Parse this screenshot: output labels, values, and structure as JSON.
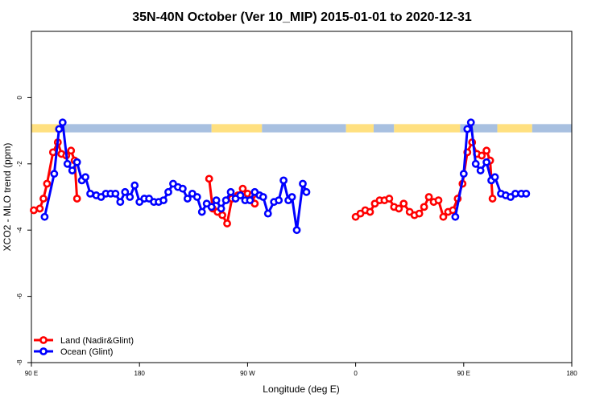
{
  "chart_data": {
    "type": "line",
    "title": "35N-40N October (Ver 10_MIP)   2015-01-01 to 2020-12-31",
    "xlabel": "Longitude (deg E)",
    "ylabel": "XCO2 - MLO trend (ppm)",
    "xlim": [
      90,
      540
    ],
    "ylim": [
      -8,
      2
    ],
    "x_ticks": [
      {
        "value": 90,
        "label": "90 E"
      },
      {
        "value": 180,
        "label": "180"
      },
      {
        "value": 270,
        "label": "90 W"
      },
      {
        "value": 360,
        "label": "0"
      },
      {
        "value": 450,
        "label": "90 E"
      },
      {
        "value": 540,
        "label": "180"
      }
    ],
    "y_ticks": [
      {
        "value": 0,
        "label": "0"
      },
      {
        "value": -2,
        "label": "-2"
      },
      {
        "value": -4,
        "label": "-4"
      },
      {
        "value": -6,
        "label": "-6"
      },
      {
        "value": -8,
        "label": "-8"
      }
    ],
    "grid": false,
    "legend_position": "bottom-left",
    "land_sea_bar": {
      "y_range": [
        -1.05,
        -0.8
      ],
      "land_color": "#ffe080",
      "sea_color": "#a8c0e0",
      "segments": [
        {
          "x0": 90,
          "x1": 117,
          "type": "land"
        },
        {
          "x0": 117,
          "x1": 240,
          "type": "sea"
        },
        {
          "x0": 240,
          "x1": 282,
          "type": "land"
        },
        {
          "x0": 282,
          "x1": 352,
          "type": "sea"
        },
        {
          "x0": 352,
          "x1": 375,
          "type": "land"
        },
        {
          "x0": 375,
          "x1": 392,
          "type": "sea"
        },
        {
          "x0": 392,
          "x1": 447,
          "type": "land"
        },
        {
          "x0": 447,
          "x1": 478,
          "type": "sea"
        },
        {
          "x0": 478,
          "x1": 507,
          "type": "land"
        },
        {
          "x0": 507,
          "x1": 540,
          "type": "sea"
        }
      ]
    },
    "series": [
      {
        "name": "Land (Nadir&Glint)",
        "color": "#ff0000",
        "segments": [
          [
            [
              92,
              -3.4
            ],
            [
              97,
              -3.35
            ],
            [
              100,
              -3.05
            ],
            [
              103,
              -2.6
            ],
            [
              108,
              -1.65
            ],
            [
              112,
              -1.35
            ],
            [
              115,
              -1.7
            ],
            [
              119,
              -1.75
            ],
            [
              123,
              -1.6
            ],
            [
              126,
              -1.9
            ],
            [
              128,
              -3.05
            ]
          ],
          [
            [
              238,
              -2.45
            ],
            [
              241,
              -3.35
            ],
            [
              245,
              -3.45
            ],
            [
              249,
              -3.55
            ],
            [
              253,
              -3.8
            ],
            [
              257,
              -3.05
            ],
            [
              262,
              -2.95
            ],
            [
              266,
              -2.75
            ],
            [
              270,
              -2.9
            ],
            [
              274,
              -2.95
            ],
            [
              276,
              -3.2
            ]
          ],
          [
            [
              360,
              -3.6
            ],
            [
              364,
              -3.5
            ],
            [
              368,
              -3.4
            ],
            [
              372,
              -3.45
            ],
            [
              376,
              -3.2
            ],
            [
              380,
              -3.1
            ],
            [
              384,
              -3.1
            ],
            [
              388,
              -3.05
            ],
            [
              392,
              -3.3
            ],
            [
              396,
              -3.35
            ],
            [
              400,
              -3.2
            ],
            [
              405,
              -3.45
            ],
            [
              409,
              -3.55
            ],
            [
              413,
              -3.5
            ],
            [
              417,
              -3.3
            ],
            [
              421,
              -3.0
            ],
            [
              425,
              -3.15
            ],
            [
              429,
              -3.1
            ],
            [
              433,
              -3.6
            ],
            [
              437,
              -3.45
            ],
            [
              441,
              -3.4
            ],
            [
              445,
              -3.05
            ],
            [
              449,
              -2.6
            ],
            [
              453,
              -1.65
            ],
            [
              457,
              -1.35
            ],
            [
              461,
              -1.7
            ],
            [
              465,
              -1.75
            ],
            [
              469,
              -1.6
            ],
            [
              472,
              -1.9
            ],
            [
              474,
              -3.05
            ]
          ]
        ]
      },
      {
        "name": "Ocean (Glint)",
        "color": "#0000ff",
        "segments": [
          [
            [
              101,
              -3.6
            ],
            [
              109,
              -2.3
            ],
            [
              113,
              -0.95
            ],
            [
              116,
              -0.75
            ],
            [
              120,
              -2.0
            ],
            [
              124,
              -2.2
            ],
            [
              128,
              -1.95
            ],
            [
              132,
              -2.5
            ],
            [
              135,
              -2.4
            ],
            [
              139,
              -2.9
            ],
            [
              144,
              -2.95
            ],
            [
              148,
              -3.0
            ],
            [
              152,
              -2.9
            ],
            [
              156,
              -2.9
            ],
            [
              160,
              -2.9
            ],
            [
              164,
              -3.15
            ],
            [
              168,
              -2.85
            ],
            [
              172,
              -3.0
            ],
            [
              176,
              -2.65
            ],
            [
              180,
              -3.15
            ],
            [
              184,
              -3.05
            ],
            [
              188,
              -3.05
            ],
            [
              192,
              -3.15
            ],
            [
              196,
              -3.15
            ],
            [
              200,
              -3.1
            ],
            [
              204,
              -2.85
            ],
            [
              208,
              -2.6
            ],
            [
              212,
              -2.7
            ],
            [
              216,
              -2.75
            ],
            [
              220,
              -3.05
            ],
            [
              224,
              -2.9
            ],
            [
              228,
              -3.0
            ],
            [
              232,
              -3.45
            ],
            [
              236,
              -3.2
            ],
            [
              240,
              -3.3
            ],
            [
              244,
              -3.1
            ],
            [
              248,
              -3.35
            ],
            [
              252,
              -3.1
            ],
            [
              256,
              -2.85
            ],
            [
              260,
              -3.05
            ],
            [
              264,
              -2.95
            ],
            [
              268,
              -3.1
            ],
            [
              272,
              -3.1
            ],
            [
              276,
              -2.85
            ],
            [
              280,
              -2.95
            ],
            [
              283,
              -3.0
            ],
            [
              287,
              -3.5
            ],
            [
              292,
              -3.15
            ],
            [
              296,
              -3.1
            ],
            [
              300,
              -2.5
            ],
            [
              304,
              -3.1
            ],
            [
              307,
              -3.0
            ],
            [
              311,
              -4.0
            ],
            [
              316,
              -2.6
            ],
            [
              319,
              -2.85
            ]
          ],
          [
            [
              443,
              -3.6
            ],
            [
              450,
              -2.3
            ],
            [
              453,
              -0.95
            ],
            [
              456,
              -0.75
            ],
            [
              460,
              -2.0
            ],
            [
              464,
              -2.2
            ],
            [
              469,
              -1.95
            ],
            [
              473,
              -2.5
            ],
            [
              476,
              -2.4
            ],
            [
              481,
              -2.9
            ],
            [
              485,
              -2.95
            ],
            [
              489,
              -3.0
            ],
            [
              493,
              -2.9
            ],
            [
              498,
              -2.9
            ],
            [
              502,
              -2.9
            ]
          ]
        ]
      }
    ]
  }
}
